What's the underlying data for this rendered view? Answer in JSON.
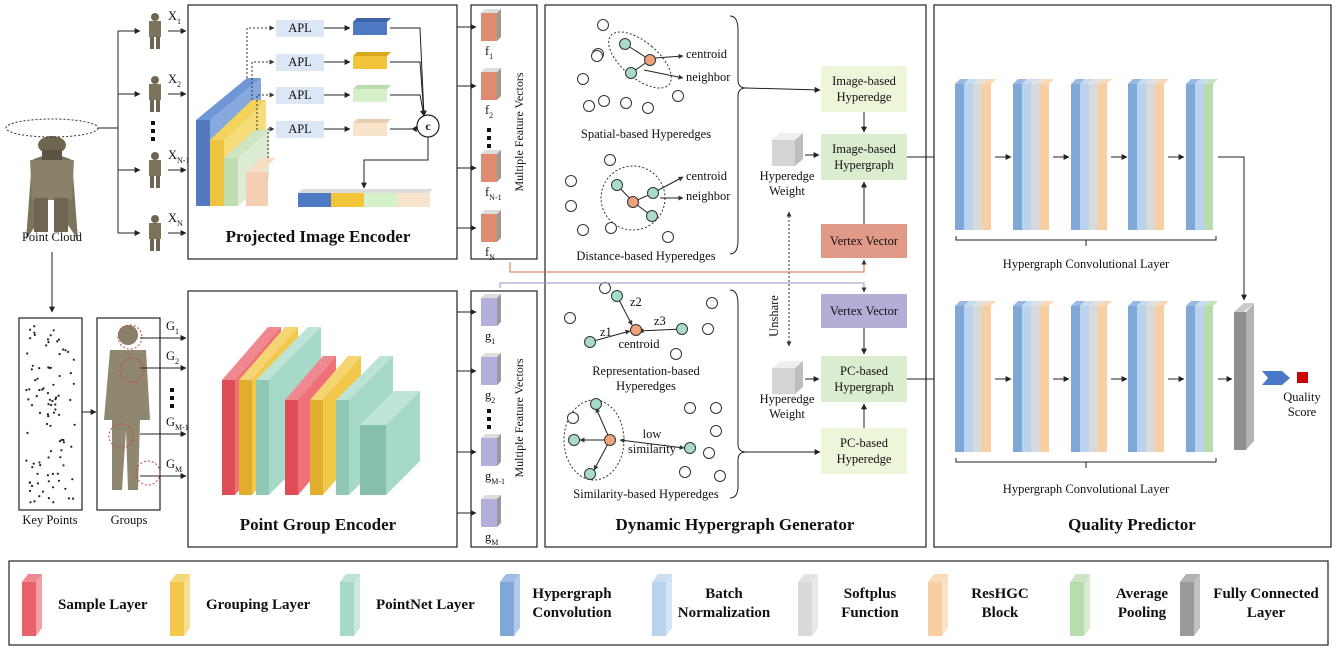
{
  "input": {
    "point_cloud": "Point Cloud",
    "key_points": "Key Points",
    "groups": "Groups",
    "views": [
      "X",
      "X",
      "X",
      "X"
    ],
    "view_subs": [
      "1",
      "2",
      "N-1",
      "N"
    ],
    "group_labels": [
      "G",
      "G",
      "G",
      "G"
    ],
    "group_subs": [
      "1",
      "2",
      "M-1",
      "M"
    ]
  },
  "image_encoder": {
    "title": "Projected Image Encoder",
    "apl": "APL",
    "concat": "c",
    "features_label": "Multiple Feature Vectors",
    "features": [
      "f",
      "f",
      "f",
      "f"
    ],
    "feature_subs": [
      "1",
      "2",
      "N-1",
      "N"
    ]
  },
  "group_encoder": {
    "title": "Point Group Encoder",
    "features_label": "Multiple Feature Vectors",
    "features": [
      "g",
      "g",
      "g",
      "g"
    ],
    "feature_subs": [
      "1",
      "2",
      "M-1",
      "M"
    ]
  },
  "generator": {
    "title": "Dynamic Hypergraph Generator",
    "spatial": "Spatial-based Hyperedges",
    "distance": "Distance-based Hyperedges",
    "representation": [
      "Representation-based",
      "Hyperedges"
    ],
    "similarity": "Similarity-based Hyperedges",
    "centroid": "centroid",
    "neighbor": "neighbor",
    "z1": "z1",
    "z2": "z2",
    "z3": "z3",
    "low_similarity": [
      "low",
      "similarity"
    ],
    "image_hyperedge": [
      "Image-based",
      "Hyperedge"
    ],
    "image_hypergraph": [
      "Image-based",
      "Hypergraph"
    ],
    "vertex_vector": "Vertex Vector",
    "pc_hypergraph": [
      "PC-based",
      "Hypergraph"
    ],
    "pc_hyperedge": [
      "PC-based",
      "Hyperedge"
    ],
    "hyperedge_weight": [
      "Hyperedge",
      "Weight"
    ],
    "unshare": "Unshare"
  },
  "predictor": {
    "title": "Quality Predictor",
    "conv_layer": "Hypergraph Convolutional Layer",
    "quality_score": [
      "Quality",
      "Score"
    ]
  },
  "legend": [
    {
      "name": "Sample Layer",
      "color": "#e8626b"
    },
    {
      "name": "Grouping Layer",
      "color": "#f2c84b"
    },
    {
      "name": "PointNet Layer",
      "color": "#a6d9c7"
    },
    {
      "name": "Hypergraph Convolution",
      "color": "#7fa7d8"
    },
    {
      "name": "Batch Normalization",
      "color": "#b9d3ee"
    },
    {
      "name": "Softplus Function",
      "color": "#d9d9d9"
    },
    {
      "name": "ResHGC Block",
      "color": "#f7cfa3"
    },
    {
      "name": "Average Pooling",
      "color": "#b9dcae"
    },
    {
      "name": "Fully Connected Layer",
      "color": "#9a9a9a"
    }
  ],
  "colors": {
    "image_node": "#eef6da",
    "vertex_red": "#e19a87",
    "vertex_purple": "#b2aed6",
    "apl_fill": "#dce6f5",
    "f_vec": "#e08a72",
    "g_vec": "#b3b0dd",
    "node_green": "#a7dcca",
    "node_orange": "#f0a27a",
    "score": "#cc0000",
    "arrow_blue": "#4a78c8"
  }
}
